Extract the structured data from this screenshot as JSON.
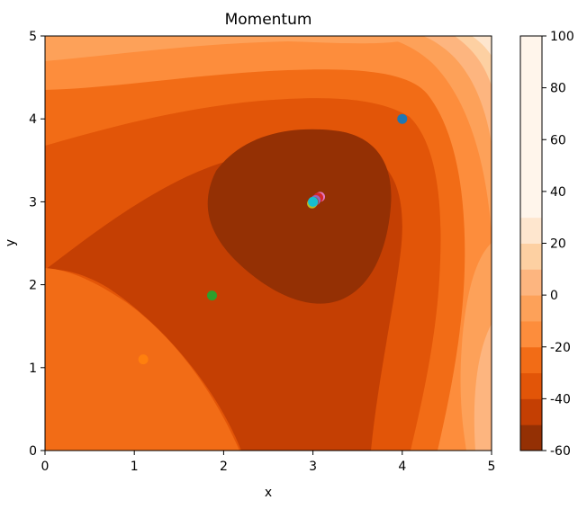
{
  "chart_data": {
    "type": "contour",
    "title": "Momentum",
    "xlabel": "x",
    "ylabel": "y",
    "xlim": [
      0,
      5
    ],
    "ylim": [
      0,
      5
    ],
    "xticks": [
      "0",
      "1",
      "2",
      "3",
      "4",
      "5"
    ],
    "yticks": [
      "0",
      "1",
      "2",
      "3",
      "4",
      "5"
    ],
    "grid": false,
    "colormap": "Oranges_r",
    "colorbar": {
      "min": -60,
      "max": 100,
      "levels": [
        -60,
        -50,
        -40,
        -30,
        -20,
        -10,
        0,
        10,
        20,
        30,
        40,
        50,
        60,
        70,
        80,
        90,
        100
      ],
      "ticks": [
        "-60",
        "-40",
        "-20",
        "0",
        "20",
        "40",
        "60",
        "80",
        "100"
      ],
      "colors": [
        "#943004",
        "#c43f03",
        "#e25508",
        "#f26c16",
        "#fd8d3c",
        "#fda159",
        "#fdb57f",
        "#fdd0a2",
        "#fee6ce",
        "#fff5eb",
        "#fff5eb",
        "#fff5eb",
        "#fff5eb",
        "#fff5eb",
        "#fff5eb",
        "#fff5eb"
      ]
    },
    "points": [
      {
        "x": 4.0,
        "y": 4.0,
        "color": "#1f77b4"
      },
      {
        "x": 1.1,
        "y": 1.1,
        "color": "#ff7f0e"
      },
      {
        "x": 1.87,
        "y": 1.87,
        "color": "#2ca02c"
      },
      {
        "x": 3.08,
        "y": 3.06,
        "color": "#e377c2"
      },
      {
        "x": 3.06,
        "y": 3.05,
        "color": "#d62728"
      },
      {
        "x": 3.03,
        "y": 3.02,
        "color": "#9467bd"
      },
      {
        "x": 3.01,
        "y": 3.0,
        "color": "#8c564b"
      },
      {
        "x": 3.0,
        "y": 2.99,
        "color": "#7f7f7f"
      },
      {
        "x": 2.99,
        "y": 2.98,
        "color": "#bcbd22"
      },
      {
        "x": 3.0,
        "y": 3.0,
        "color": "#17becf"
      }
    ]
  }
}
